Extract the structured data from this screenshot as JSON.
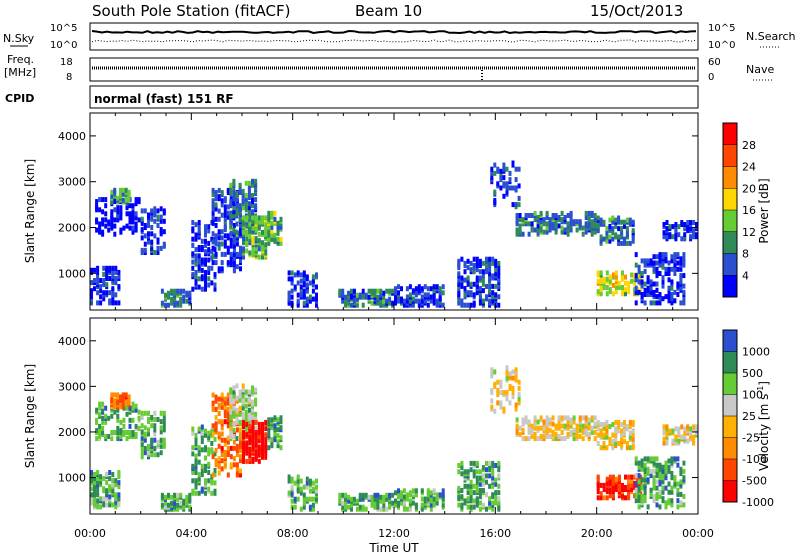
{
  "header": {
    "station": "South Pole Station (fitACF)",
    "beam": "Beam 10",
    "date": "15/Oct/2013"
  },
  "panels": {
    "nsky": {
      "left_label": "N.Sky",
      "right_label": "N.Search",
      "left_ticks": [
        "10^5",
        "10^0"
      ],
      "right_ticks": [
        "10^5",
        "10^0"
      ]
    },
    "freq": {
      "left_label_1": "Freq.",
      "left_label_2": "[MHz]",
      "right_label": "Nave",
      "left_ticks": [
        "18",
        "8"
      ],
      "right_ticks": [
        "60",
        "0"
      ]
    },
    "cpid": {
      "label": "CPID",
      "text": "normal (fast) 151 RF"
    }
  },
  "colors": {
    "power_scale": [
      "#0000ff",
      "#2a4fcf",
      "#2e8b57",
      "#66cc33",
      "#ffd700",
      "#ff8c00",
      "#ff4500",
      "#ff0000"
    ],
    "velocity_scale": [
      "#ff0000",
      "#ff4500",
      "#ff8c00",
      "#ffb000",
      "#c8c8c8",
      "#66cc33",
      "#2e8b57",
      "#2a4fcf"
    ]
  },
  "chart_data": [
    {
      "type": "heatmap",
      "title": "",
      "xlabel": "",
      "ylabel": "Slant Range [km]",
      "x_ticks": [
        "00:00",
        "04:00",
        "08:00",
        "12:00",
        "16:00",
        "20:00",
        "00:00"
      ],
      "y_ticks": [
        "1000",
        "2000",
        "3000",
        "4000"
      ],
      "ylim": [
        200,
        4500
      ],
      "colorbar": {
        "label": "Power [dB]",
        "ticks": [
          "4",
          "8",
          "12",
          "16",
          "20",
          "24",
          "28"
        ]
      }
    },
    {
      "type": "heatmap",
      "title": "",
      "xlabel": "Time UT",
      "ylabel": "Slant Range [km]",
      "x_ticks": [
        "00:00",
        "04:00",
        "08:00",
        "12:00",
        "16:00",
        "20:00",
        "00:00"
      ],
      "y_ticks": [
        "1000",
        "2000",
        "3000",
        "4000"
      ],
      "ylim": [
        200,
        4500
      ],
      "colorbar": {
        "label": "Velocity [m s",
        "label_sup": "-1",
        "label_end": "]",
        "ticks": [
          "1000",
          "500",
          "100",
          "25",
          "-25",
          "-100",
          "-500",
          "-1000"
        ]
      }
    }
  ]
}
